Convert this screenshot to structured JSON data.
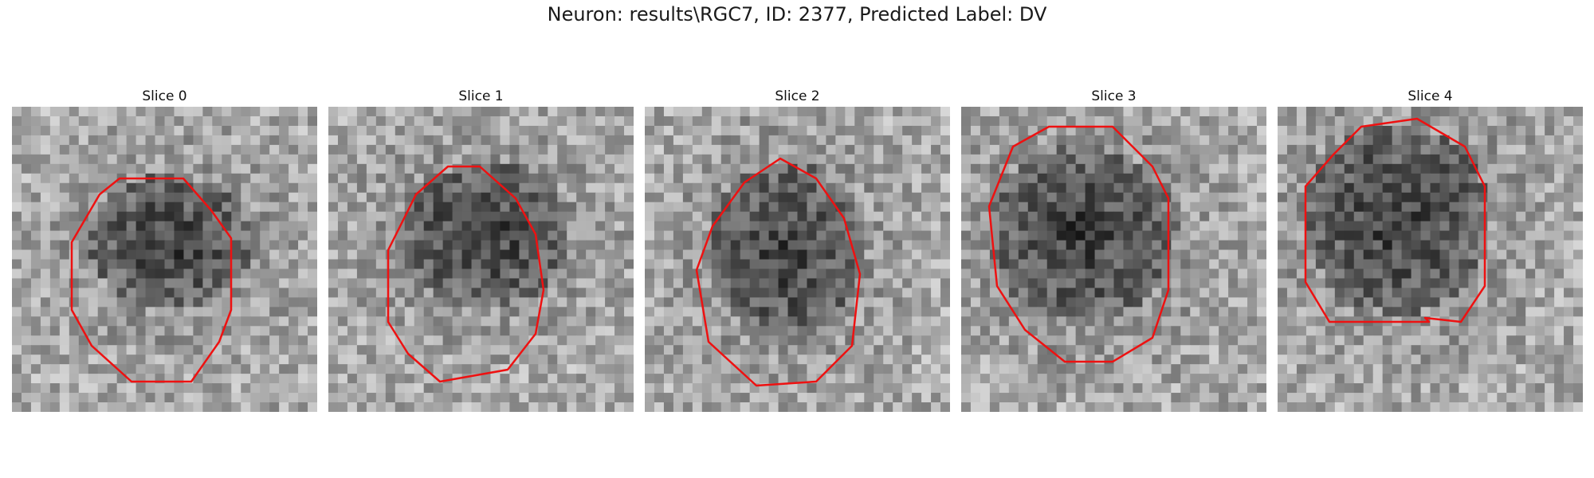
{
  "figure": {
    "title": "Neuron: results\\RGC7, ID: 2377, Predicted Label: DV"
  },
  "slices": [
    {
      "title": "Slice 0"
    },
    {
      "title": "Slice 1"
    },
    {
      "title": "Slice 2"
    },
    {
      "title": "Slice 3"
    },
    {
      "title": "Slice 4"
    }
  ],
  "colors": {
    "contour": "#ee1111",
    "colormap": "gray"
  }
}
